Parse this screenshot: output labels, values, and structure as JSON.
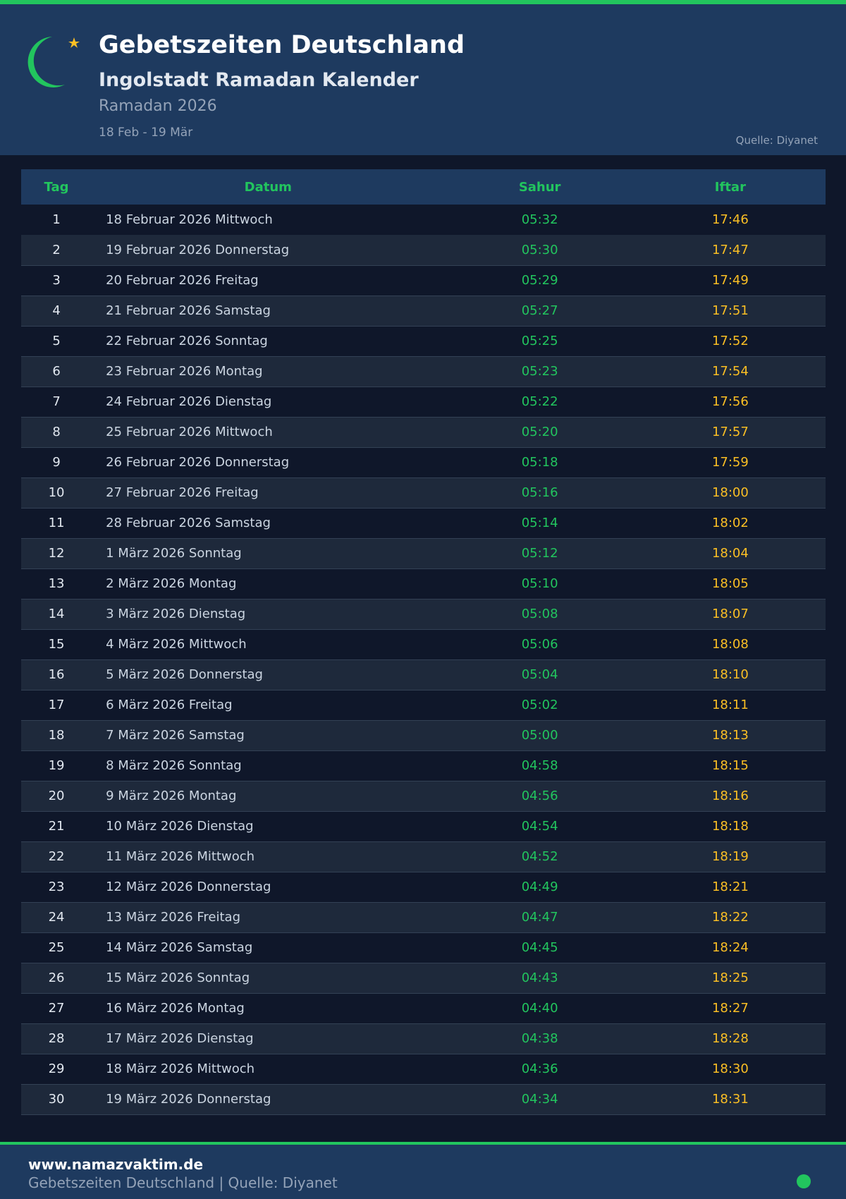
{
  "colors": {
    "accent": "#22c55e",
    "iftar": "#fbbf24",
    "header_bg": "#1e3a5f",
    "page_bg": "#0f172a"
  },
  "header": {
    "logo_icon": "crescent-star-icon",
    "title": "Gebetszeiten Deutschland",
    "subtitle": "Ingolstadt Ramadan Kalender",
    "year": "Ramadan 2026",
    "range": "18 Feb - 19 Mär",
    "source": "Quelle: Diyanet"
  },
  "table": {
    "headers": {
      "tag": "Tag",
      "datum": "Datum",
      "sahur": "Sahur",
      "iftar": "Iftar"
    },
    "rows": [
      {
        "tag": "1",
        "datum": "18 Februar 2026 Mittwoch",
        "sahur": "05:32",
        "iftar": "17:46"
      },
      {
        "tag": "2",
        "datum": "19 Februar 2026 Donnerstag",
        "sahur": "05:30",
        "iftar": "17:47"
      },
      {
        "tag": "3",
        "datum": "20 Februar 2026 Freitag",
        "sahur": "05:29",
        "iftar": "17:49"
      },
      {
        "tag": "4",
        "datum": "21 Februar 2026 Samstag",
        "sahur": "05:27",
        "iftar": "17:51"
      },
      {
        "tag": "5",
        "datum": "22 Februar 2026 Sonntag",
        "sahur": "05:25",
        "iftar": "17:52"
      },
      {
        "tag": "6",
        "datum": "23 Februar 2026 Montag",
        "sahur": "05:23",
        "iftar": "17:54"
      },
      {
        "tag": "7",
        "datum": "24 Februar 2026 Dienstag",
        "sahur": "05:22",
        "iftar": "17:56"
      },
      {
        "tag": "8",
        "datum": "25 Februar 2026 Mittwoch",
        "sahur": "05:20",
        "iftar": "17:57"
      },
      {
        "tag": "9",
        "datum": "26 Februar 2026 Donnerstag",
        "sahur": "05:18",
        "iftar": "17:59"
      },
      {
        "tag": "10",
        "datum": "27 Februar 2026 Freitag",
        "sahur": "05:16",
        "iftar": "18:00"
      },
      {
        "tag": "11",
        "datum": "28 Februar 2026 Samstag",
        "sahur": "05:14",
        "iftar": "18:02"
      },
      {
        "tag": "12",
        "datum": "1 März 2026 Sonntag",
        "sahur": "05:12",
        "iftar": "18:04"
      },
      {
        "tag": "13",
        "datum": "2 März 2026 Montag",
        "sahur": "05:10",
        "iftar": "18:05"
      },
      {
        "tag": "14",
        "datum": "3 März 2026 Dienstag",
        "sahur": "05:08",
        "iftar": "18:07"
      },
      {
        "tag": "15",
        "datum": "4 März 2026 Mittwoch",
        "sahur": "05:06",
        "iftar": "18:08"
      },
      {
        "tag": "16",
        "datum": "5 März 2026 Donnerstag",
        "sahur": "05:04",
        "iftar": "18:10"
      },
      {
        "tag": "17",
        "datum": "6 März 2026 Freitag",
        "sahur": "05:02",
        "iftar": "18:11"
      },
      {
        "tag": "18",
        "datum": "7 März 2026 Samstag",
        "sahur": "05:00",
        "iftar": "18:13"
      },
      {
        "tag": "19",
        "datum": "8 März 2026 Sonntag",
        "sahur": "04:58",
        "iftar": "18:15"
      },
      {
        "tag": "20",
        "datum": "9 März 2026 Montag",
        "sahur": "04:56",
        "iftar": "18:16"
      },
      {
        "tag": "21",
        "datum": "10 März 2026 Dienstag",
        "sahur": "04:54",
        "iftar": "18:18"
      },
      {
        "tag": "22",
        "datum": "11 März 2026 Mittwoch",
        "sahur": "04:52",
        "iftar": "18:19"
      },
      {
        "tag": "23",
        "datum": "12 März 2026 Donnerstag",
        "sahur": "04:49",
        "iftar": "18:21"
      },
      {
        "tag": "24",
        "datum": "13 März 2026 Freitag",
        "sahur": "04:47",
        "iftar": "18:22"
      },
      {
        "tag": "25",
        "datum": "14 März 2026 Samstag",
        "sahur": "04:45",
        "iftar": "18:24"
      },
      {
        "tag": "26",
        "datum": "15 März 2026 Sonntag",
        "sahur": "04:43",
        "iftar": "18:25"
      },
      {
        "tag": "27",
        "datum": "16 März 2026 Montag",
        "sahur": "04:40",
        "iftar": "18:27"
      },
      {
        "tag": "28",
        "datum": "17 März 2026 Dienstag",
        "sahur": "04:38",
        "iftar": "18:28"
      },
      {
        "tag": "29",
        "datum": "18 März 2026 Mittwoch",
        "sahur": "04:36",
        "iftar": "18:30"
      },
      {
        "tag": "30",
        "datum": "19 März 2026 Donnerstag",
        "sahur": "04:34",
        "iftar": "18:31"
      }
    ]
  },
  "footer": {
    "site": "www.namazvaktim.de",
    "tagline": "Gebetszeiten Deutschland | Quelle: Diyanet",
    "status_icon": "green-dot-icon"
  }
}
